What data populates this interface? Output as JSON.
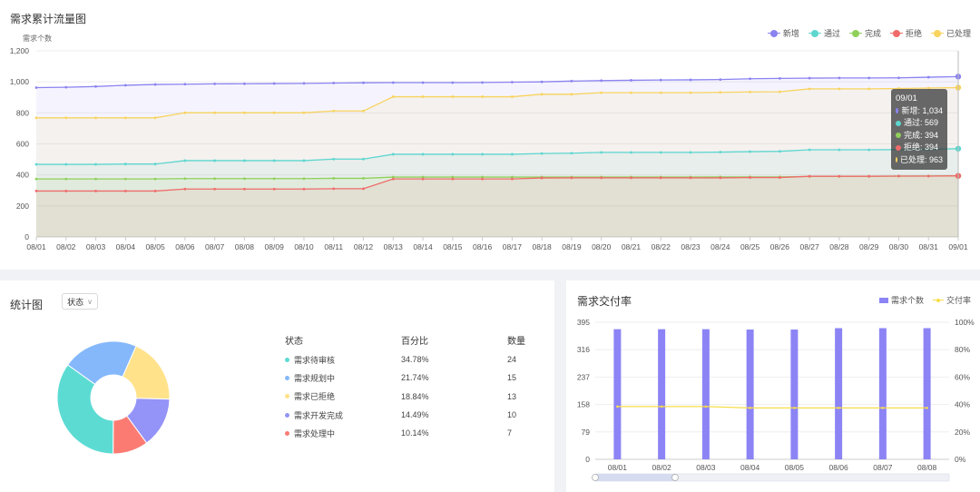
{
  "top_panel": {
    "title": "需求累计流量图",
    "tooltip": {
      "date": "09/01",
      "rows": [
        {
          "label": "新增",
          "value": "1,034",
          "color": "#8b83f0"
        },
        {
          "label": "通过",
          "value": "569",
          "color": "#5dd6cf"
        },
        {
          "label": "完成",
          "value": "394",
          "color": "#8fd05a"
        },
        {
          "label": "拒绝",
          "value": "394",
          "color": "#f06b6b"
        },
        {
          "label": "已处理",
          "value": "963",
          "color": "#f8d35e"
        }
      ]
    }
  },
  "stat_panel": {
    "title": "统计图",
    "select_value": "状态",
    "table_headers": {
      "status": "状态",
      "percent": "百分比",
      "count": "数量"
    }
  },
  "rate_panel": {
    "title": "需求交付率"
  },
  "chart_data": [
    {
      "type": "area",
      "title": "需求累计流量图",
      "ylabel": "需求个数",
      "ylim": [
        0,
        1200
      ],
      "yticks": [
        "0",
        "200",
        "400",
        "600",
        "800",
        "1,000",
        "1,200"
      ],
      "x": [
        "08/01",
        "08/02",
        "08/03",
        "08/04",
        "08/05",
        "08/06",
        "08/07",
        "08/08",
        "08/09",
        "08/10",
        "08/11",
        "08/12",
        "08/13",
        "08/14",
        "08/15",
        "08/16",
        "08/17",
        "08/18",
        "08/19",
        "08/20",
        "08/21",
        "08/22",
        "08/23",
        "08/24",
        "08/25",
        "08/26",
        "08/27",
        "08/28",
        "08/29",
        "08/30",
        "08/31",
        "09/01"
      ],
      "legend_position": "top-right",
      "series": [
        {
          "name": "新增",
          "color": "#8b83f0",
          "values": [
            963,
            965,
            970,
            978,
            983,
            985,
            987,
            988,
            989,
            990,
            992,
            994,
            995,
            995,
            995,
            996,
            998,
            1000,
            1005,
            1008,
            1010,
            1012,
            1013,
            1015,
            1020,
            1022,
            1024,
            1025,
            1025,
            1026,
            1030,
            1034
          ]
        },
        {
          "name": "通过",
          "color": "#5dd6cf",
          "values": [
            468,
            468,
            468,
            470,
            470,
            492,
            492,
            492,
            492,
            492,
            502,
            502,
            533,
            533,
            533,
            533,
            533,
            538,
            540,
            545,
            545,
            545,
            545,
            547,
            550,
            552,
            562,
            562,
            562,
            563,
            565,
            569
          ]
        },
        {
          "name": "完成",
          "color": "#8fd05a",
          "values": [
            374,
            374,
            374,
            374,
            374,
            376,
            376,
            376,
            376,
            376,
            378,
            378,
            386,
            386,
            386,
            386,
            386,
            386,
            386,
            386,
            386,
            386,
            386,
            387,
            387,
            387,
            390,
            390,
            391,
            392,
            393,
            394
          ]
        },
        {
          "name": "拒绝",
          "color": "#f06b6b",
          "values": [
            296,
            296,
            296,
            296,
            296,
            309,
            309,
            309,
            309,
            309,
            311,
            311,
            374,
            374,
            374,
            374,
            374,
            380,
            381,
            381,
            381,
            381,
            381,
            381,
            383,
            383,
            391,
            391,
            391,
            392,
            392,
            394
          ]
        },
        {
          "name": "已处理",
          "color": "#f8d35e",
          "values": [
            768,
            768,
            768,
            768,
            768,
            801,
            801,
            801,
            801,
            801,
            812,
            812,
            904,
            904,
            904,
            904,
            904,
            920,
            920,
            930,
            930,
            930,
            930,
            932,
            935,
            936,
            955,
            955,
            955,
            957,
            960,
            963
          ]
        }
      ]
    },
    {
      "type": "pie",
      "title": "统计图",
      "slices": [
        {
          "label": "需求待审核",
          "percent": "34.78%",
          "value": 24,
          "color": "#5cdbd3"
        },
        {
          "label": "需求规划中",
          "percent": "21.74%",
          "value": 15,
          "color": "#85b8fb"
        },
        {
          "label": "需求已拒绝",
          "percent": "18.84%",
          "value": 13,
          "color": "#ffe28a"
        },
        {
          "label": "需求开发完成",
          "percent": "14.49%",
          "value": 10,
          "color": "#9493f7"
        },
        {
          "label": "需求处理中",
          "percent": "10.14%",
          "value": 7,
          "color": "#fb7b73"
        }
      ]
    },
    {
      "type": "bar",
      "title": "需求交付率",
      "categories": [
        "08/01",
        "08/02",
        "08/03",
        "08/04",
        "08/05",
        "08/06",
        "08/07",
        "08/08"
      ],
      "ylim": [
        0,
        395
      ],
      "yticks": [
        "0",
        "79",
        "158",
        "237",
        "316",
        "395"
      ],
      "y2ticks": [
        "0%",
        "20%",
        "40%",
        "60%",
        "80%",
        "100%"
      ],
      "legend_position": "top-right",
      "series": [
        {
          "name": "需求个数",
          "type": "bar",
          "color": "#8c84f5",
          "values": [
            375,
            375,
            375,
            374,
            374,
            378,
            378,
            378
          ]
        },
        {
          "name": "交付率",
          "type": "line",
          "color": "#f7dd4a",
          "values_percent": [
            38.5,
            38.5,
            38.5,
            37.5,
            37.5,
            37.5,
            37.5,
            37.5
          ]
        }
      ]
    }
  ]
}
